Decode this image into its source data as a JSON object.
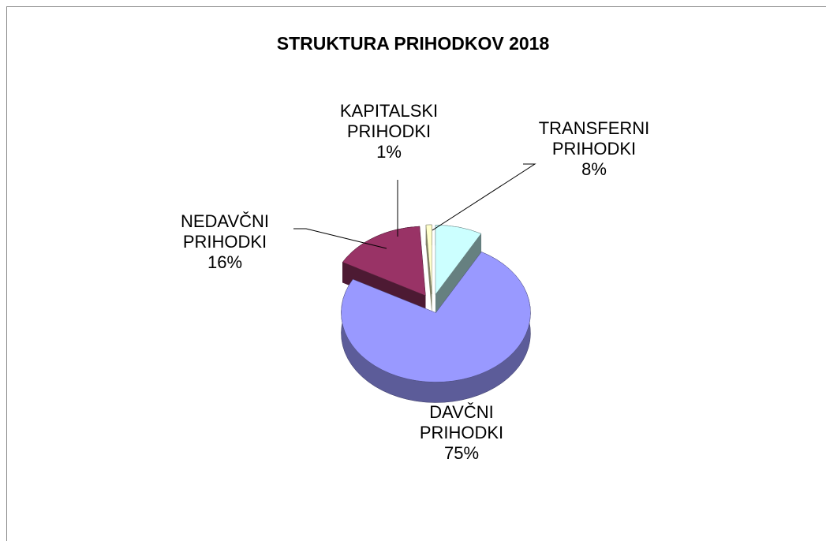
{
  "chart_data": {
    "type": "pie",
    "title": "STRUKTURA PRIHODKOV 2018",
    "categories": [
      "TRANSFERNI PRIHODKI",
      "DAVČNI PRIHODKI",
      "NEDAVČNI PRIHODKI",
      "KAPITALSKI PRIHODKI"
    ],
    "values": [
      8,
      75,
      16,
      1
    ],
    "value_labels": [
      "8%",
      "75%",
      "16%",
      "1%"
    ],
    "colors": [
      "#ccffff",
      "#9999ff",
      "#993366",
      "#ffffcc"
    ]
  }
}
